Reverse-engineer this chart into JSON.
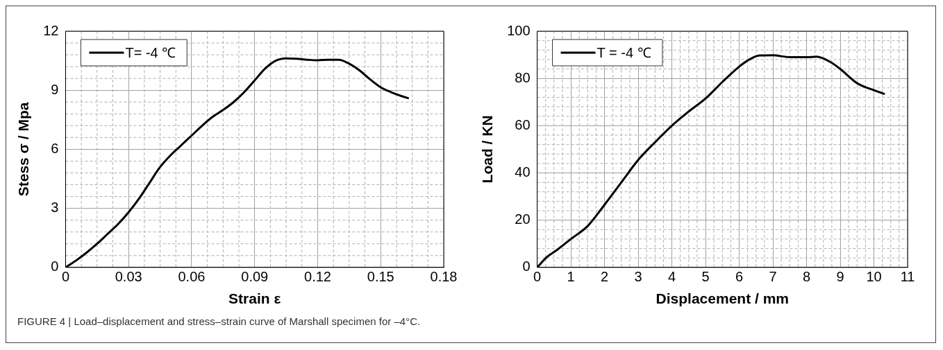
{
  "chart_data": [
    {
      "type": "line",
      "xlabel": "Strain ε",
      "ylabel": "Stess σ / Mpa",
      "xlim": [
        0,
        0.18
      ],
      "ylim": [
        0,
        12
      ],
      "xticks": [
        0,
        0.03,
        0.06,
        0.09,
        0.12,
        0.15,
        0.18
      ],
      "yticks": [
        0,
        3,
        6,
        9,
        12
      ],
      "grid": true,
      "legend": "top left",
      "x": [
        0,
        0.005,
        0.01,
        0.015,
        0.02,
        0.025,
        0.03,
        0.035,
        0.04,
        0.045,
        0.05,
        0.055,
        0.06,
        0.065,
        0.07,
        0.075,
        0.08,
        0.085,
        0.09,
        0.095,
        0.1,
        0.105,
        0.11,
        0.115,
        0.12,
        0.125,
        0.13,
        0.135,
        0.14,
        0.145,
        0.15,
        0.155,
        0.16,
        0.163
      ],
      "series": [
        {
          "name": "T= -4 ℃",
          "color": "#000000",
          "values": [
            0,
            0.35,
            0.75,
            1.2,
            1.7,
            2.2,
            2.8,
            3.5,
            4.3,
            5.1,
            5.7,
            6.2,
            6.7,
            7.2,
            7.65,
            8.0,
            8.4,
            8.9,
            9.5,
            10.1,
            10.5,
            10.62,
            10.6,
            10.55,
            10.52,
            10.55,
            10.55,
            10.35,
            10.0,
            9.55,
            9.15,
            8.9,
            8.7,
            8.6
          ]
        }
      ]
    },
    {
      "type": "line",
      "xlabel": "Displacement / mm",
      "ylabel": "Load / KN",
      "xlim": [
        0,
        11
      ],
      "ylim": [
        0,
        100
      ],
      "xticks": [
        0,
        1,
        2,
        3,
        4,
        5,
        6,
        7,
        8,
        9,
        10,
        11
      ],
      "yticks": [
        0,
        20,
        40,
        60,
        80,
        100
      ],
      "grid": true,
      "legend": "top left",
      "x": [
        0,
        0.3,
        0.6,
        1,
        1.5,
        2,
        2.5,
        3,
        3.5,
        4,
        4.5,
        5,
        5.5,
        6,
        6.3,
        6.6,
        7,
        7.5,
        8,
        8.3,
        8.7,
        9,
        9.5,
        10,
        10.3
      ],
      "series": [
        {
          "name": "T = -4 ℃",
          "color": "#000000",
          "values": [
            0,
            4.5,
            7.5,
            12,
            17.5,
            26.5,
            36,
            45.5,
            53,
            60,
            66,
            71.5,
            78.5,
            85,
            88,
            89.7,
            89.8,
            89,
            89,
            89.2,
            87,
            84,
            78,
            75,
            73.5
          ]
        }
      ]
    },
    {
      "type": "other",
      "annotations": [
        "FIGURE 4 | Load–displacement and stress–strain curve of Marshall specimen for –4°C."
      ]
    }
  ]
}
